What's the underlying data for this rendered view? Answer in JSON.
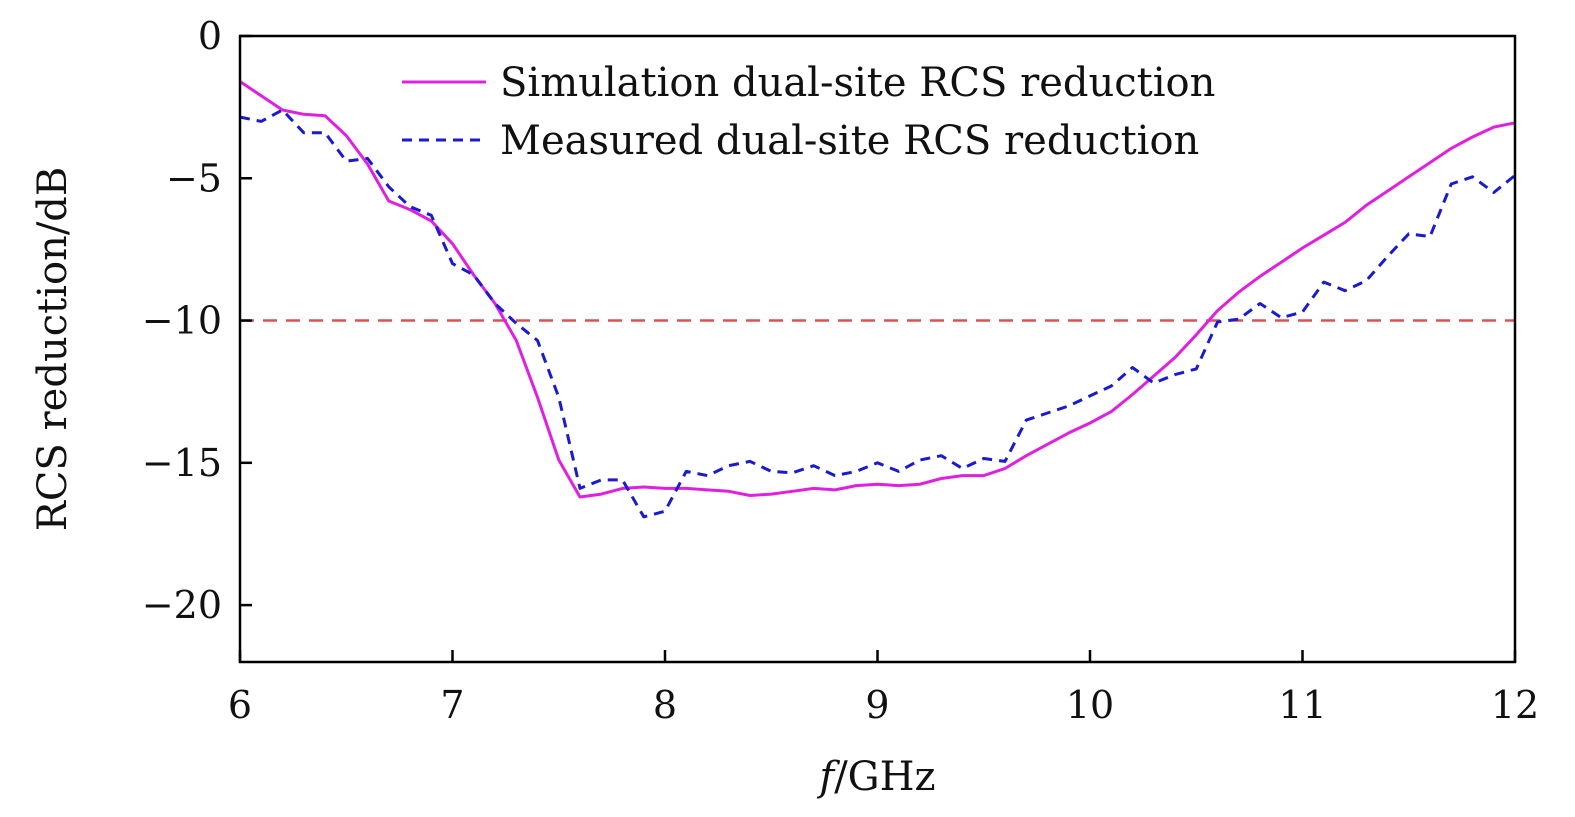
{
  "chart_data": {
    "type": "line",
    "title": "",
    "xlabel_italic": "f",
    "xlabel_rest": "/GHz",
    "ylabel": "RCS reduction/dB",
    "xlim": [
      6,
      12
    ],
    "ylim": [
      -22,
      0
    ],
    "x_ticks": [
      6,
      7,
      8,
      9,
      10,
      11,
      12
    ],
    "y_ticks": [
      0,
      -5,
      -10,
      -15,
      -20
    ],
    "x_tick_labels": [
      "6",
      "7",
      "8",
      "9",
      "10",
      "11",
      "12"
    ],
    "y_tick_labels": [
      "0",
      "−5",
      "−10",
      "−15",
      "−20"
    ],
    "grid": false,
    "legend_position": "top-center",
    "reference_line": {
      "y": -10,
      "color": "#e05050",
      "style": "dashed"
    },
    "series": [
      {
        "name": "Simulation dual-site RCS reduction",
        "color": "#e020e0",
        "style": "solid",
        "points": [
          [
            6.0,
            -1.6
          ],
          [
            6.1,
            -2.1
          ],
          [
            6.2,
            -2.6
          ],
          [
            6.3,
            -2.75
          ],
          [
            6.4,
            -2.8
          ],
          [
            6.5,
            -3.5
          ],
          [
            6.6,
            -4.5
          ],
          [
            6.7,
            -5.8
          ],
          [
            6.8,
            -6.1
          ],
          [
            6.9,
            -6.5
          ],
          [
            7.0,
            -7.3
          ],
          [
            7.1,
            -8.4
          ],
          [
            7.2,
            -9.4
          ],
          [
            7.3,
            -10.7
          ],
          [
            7.4,
            -12.7
          ],
          [
            7.5,
            -14.9
          ],
          [
            7.6,
            -16.2
          ],
          [
            7.7,
            -16.1
          ],
          [
            7.8,
            -15.9
          ],
          [
            7.9,
            -15.85
          ],
          [
            8.0,
            -15.9
          ],
          [
            8.1,
            -15.9
          ],
          [
            8.2,
            -15.95
          ],
          [
            8.3,
            -16.0
          ],
          [
            8.4,
            -16.15
          ],
          [
            8.5,
            -16.1
          ],
          [
            8.6,
            -16.0
          ],
          [
            8.7,
            -15.9
          ],
          [
            8.8,
            -15.95
          ],
          [
            8.9,
            -15.8
          ],
          [
            9.0,
            -15.75
          ],
          [
            9.1,
            -15.8
          ],
          [
            9.2,
            -15.75
          ],
          [
            9.3,
            -15.55
          ],
          [
            9.4,
            -15.45
          ],
          [
            9.5,
            -15.45
          ],
          [
            9.6,
            -15.2
          ],
          [
            9.7,
            -14.75
          ],
          [
            9.8,
            -14.35
          ],
          [
            9.9,
            -13.95
          ],
          [
            10.0,
            -13.6
          ],
          [
            10.1,
            -13.2
          ],
          [
            10.2,
            -12.6
          ],
          [
            10.3,
            -11.95
          ],
          [
            10.4,
            -11.3
          ],
          [
            10.5,
            -10.5
          ],
          [
            10.6,
            -9.65
          ],
          [
            10.7,
            -9.0
          ],
          [
            10.8,
            -8.45
          ],
          [
            10.9,
            -7.95
          ],
          [
            11.0,
            -7.45
          ],
          [
            11.1,
            -7.0
          ],
          [
            11.2,
            -6.55
          ],
          [
            11.3,
            -5.95
          ],
          [
            11.4,
            -5.45
          ],
          [
            11.5,
            -4.95
          ],
          [
            11.6,
            -4.45
          ],
          [
            11.7,
            -3.95
          ],
          [
            11.8,
            -3.55
          ],
          [
            11.9,
            -3.2
          ],
          [
            12.0,
            -3.05
          ]
        ]
      },
      {
        "name": "Measured dual-site RCS reduction",
        "color": "#1a1ad0",
        "style": "dashed",
        "points": [
          [
            6.0,
            -2.85
          ],
          [
            6.1,
            -3.0
          ],
          [
            6.2,
            -2.6
          ],
          [
            6.3,
            -3.4
          ],
          [
            6.4,
            -3.4
          ],
          [
            6.5,
            -4.4
          ],
          [
            6.6,
            -4.3
          ],
          [
            6.7,
            -5.3
          ],
          [
            6.8,
            -6.0
          ],
          [
            6.9,
            -6.3
          ],
          [
            7.0,
            -8.0
          ],
          [
            7.1,
            -8.4
          ],
          [
            7.2,
            -9.4
          ],
          [
            7.3,
            -10.1
          ],
          [
            7.4,
            -10.7
          ],
          [
            7.5,
            -12.7
          ],
          [
            7.6,
            -15.9
          ],
          [
            7.7,
            -15.6
          ],
          [
            7.8,
            -15.6
          ],
          [
            7.9,
            -16.9
          ],
          [
            8.0,
            -16.7
          ],
          [
            8.1,
            -15.3
          ],
          [
            8.2,
            -15.45
          ],
          [
            8.3,
            -15.1
          ],
          [
            8.4,
            -14.95
          ],
          [
            8.5,
            -15.3
          ],
          [
            8.6,
            -15.35
          ],
          [
            8.7,
            -15.1
          ],
          [
            8.8,
            -15.45
          ],
          [
            8.9,
            -15.3
          ],
          [
            9.0,
            -15.0
          ],
          [
            9.1,
            -15.3
          ],
          [
            9.2,
            -14.9
          ],
          [
            9.3,
            -14.75
          ],
          [
            9.4,
            -15.2
          ],
          [
            9.5,
            -14.85
          ],
          [
            9.6,
            -14.95
          ],
          [
            9.7,
            -13.5
          ],
          [
            9.8,
            -13.25
          ],
          [
            9.9,
            -13.0
          ],
          [
            10.0,
            -12.65
          ],
          [
            10.1,
            -12.3
          ],
          [
            10.2,
            -11.65
          ],
          [
            10.3,
            -12.2
          ],
          [
            10.4,
            -11.9
          ],
          [
            10.5,
            -11.7
          ],
          [
            10.6,
            -10.05
          ],
          [
            10.7,
            -9.95
          ],
          [
            10.8,
            -9.4
          ],
          [
            10.9,
            -9.9
          ],
          [
            11.0,
            -9.7
          ],
          [
            11.1,
            -8.65
          ],
          [
            11.2,
            -8.95
          ],
          [
            11.3,
            -8.6
          ],
          [
            11.4,
            -7.75
          ],
          [
            11.5,
            -6.95
          ],
          [
            11.6,
            -7.05
          ],
          [
            11.7,
            -5.2
          ],
          [
            11.8,
            -4.95
          ],
          [
            11.9,
            -5.5
          ],
          [
            12.0,
            -4.9
          ]
        ]
      }
    ]
  }
}
